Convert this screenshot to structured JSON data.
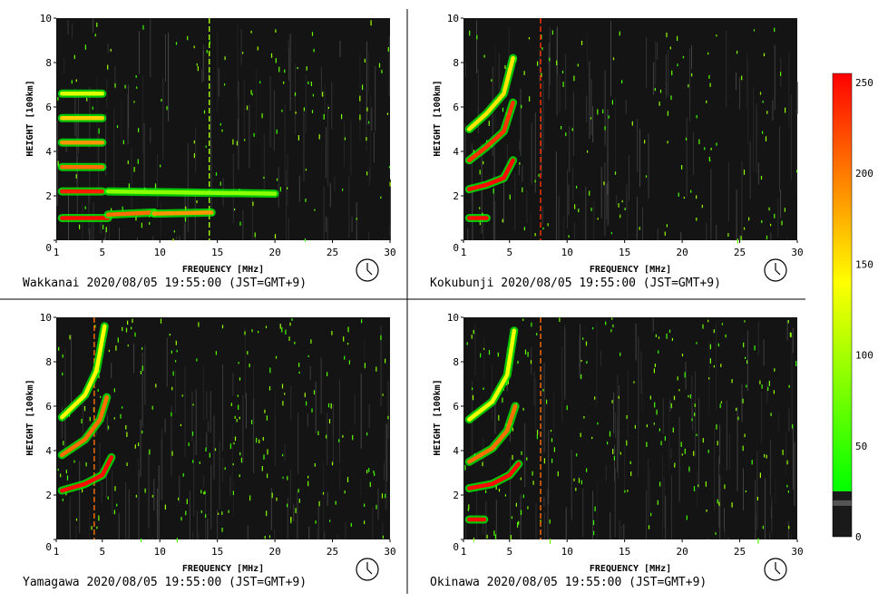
{
  "chart_data": [
    {
      "type": "heatmap",
      "station": "Wakkanai",
      "caption": "Wakkanai 2020/08/05 19:55:00 (JST=GMT+9)",
      "xlabel": "FREQUENCY [MHz]",
      "ylabel": "HEIGHT [100km]",
      "xlim": [
        1,
        30
      ],
      "ylim": [
        0,
        10
      ],
      "xticks": [
        1,
        5,
        10,
        15,
        20,
        25,
        30
      ],
      "yticks": [
        0,
        2,
        4,
        6,
        8,
        10
      ],
      "x_display_ticks": [
        5,
        10,
        15,
        20,
        25
      ],
      "traces": [
        {
          "x": [
            1.5,
            5.5
          ],
          "y": [
            1.0,
            1.0
          ],
          "intensity": 250
        },
        {
          "x": [
            5.5,
            9.5
          ],
          "y": [
            1.15,
            1.25
          ],
          "intensity": 200
        },
        {
          "x": [
            9.5,
            14.5
          ],
          "y": [
            1.2,
            1.25
          ],
          "intensity": 180
        },
        {
          "x": [
            1.5,
            5.0
          ],
          "y": [
            2.2,
            2.2
          ],
          "intensity": 240
        },
        {
          "x": [
            1.5,
            5.0
          ],
          "y": [
            3.3,
            3.3
          ],
          "intensity": 200
        },
        {
          "x": [
            1.5,
            5.0
          ],
          "y": [
            4.4,
            4.4
          ],
          "intensity": 180
        },
        {
          "x": [
            1.5,
            5.0
          ],
          "y": [
            5.5,
            5.5
          ],
          "intensity": 150
        },
        {
          "x": [
            1.5,
            5.0
          ],
          "y": [
            6.6,
            6.6
          ],
          "intensity": 110
        },
        {
          "x": [
            5.5,
            20
          ],
          "y": [
            2.2,
            2.1
          ],
          "intensity": 70
        }
      ],
      "vlines": [
        {
          "x": 14.3,
          "intensity": 80
        }
      ]
    },
    {
      "type": "heatmap",
      "station": "Kokubunji",
      "caption": "Kokubunji 2020/08/05 19:55:00 (JST=GMT+9)",
      "xlabel": "FREQUENCY [MHz]",
      "ylabel": "HEIGHT [100km]",
      "xlim": [
        1,
        30
      ],
      "ylim": [
        0,
        10
      ],
      "xticks": [
        1,
        5,
        10,
        15,
        20,
        25,
        30
      ],
      "yticks": [
        0,
        2,
        4,
        6,
        8,
        10
      ],
      "x_display_ticks": [
        5,
        10,
        15,
        20,
        25
      ],
      "traces": [
        {
          "x": [
            1.5,
            3.0
          ],
          "y": [
            1.0,
            1.0
          ],
          "intensity": 250
        },
        {
          "x": [
            1.5,
            3.0,
            4.5,
            5.3
          ],
          "y": [
            2.3,
            2.5,
            2.8,
            3.6
          ],
          "intensity": 250
        },
        {
          "x": [
            1.5,
            3.0,
            4.5,
            5.3
          ],
          "y": [
            3.6,
            4.2,
            4.9,
            6.2
          ],
          "intensity": 230
        },
        {
          "x": [
            1.5,
            3.0,
            4.5,
            5.3
          ],
          "y": [
            5.0,
            5.7,
            6.6,
            8.2
          ],
          "intensity": 140
        }
      ],
      "vlines": [
        {
          "x": 7.7,
          "intensity": 230
        }
      ]
    },
    {
      "type": "heatmap",
      "station": "Yamagawa",
      "caption": "Yamagawa 2020/08/05 19:55:00 (JST=GMT+9)",
      "xlabel": "FREQUENCY [MHz]",
      "ylabel": "HEIGHT [100km]",
      "xlim": [
        1,
        30
      ],
      "ylim": [
        0,
        10
      ],
      "xticks": [
        1,
        5,
        10,
        15,
        20,
        25,
        30
      ],
      "yticks": [
        0,
        2,
        4,
        6,
        8,
        10
      ],
      "x_display_ticks": [
        5,
        10,
        15,
        20,
        25
      ],
      "traces": [
        {
          "x": [
            1.5,
            3.5,
            5.0,
            5.8
          ],
          "y": [
            2.2,
            2.5,
            2.9,
            3.7
          ],
          "intensity": 250
        },
        {
          "x": [
            1.5,
            3.5,
            4.8,
            5.4
          ],
          "y": [
            3.8,
            4.5,
            5.4,
            6.4
          ],
          "intensity": 200
        },
        {
          "x": [
            1.5,
            3.5,
            4.5,
            5.2
          ],
          "y": [
            5.5,
            6.5,
            7.6,
            9.6
          ],
          "intensity": 130
        }
      ],
      "vlines": [
        {
          "x": 4.3,
          "intensity": 200
        }
      ]
    },
    {
      "type": "heatmap",
      "station": "Okinawa",
      "caption": "Okinawa 2020/08/05 19:55:00 (JST=GMT+9)",
      "xlabel": "FREQUENCY [MHz]",
      "ylabel": "HEIGHT [100km]",
      "xlim": [
        1,
        30
      ],
      "ylim": [
        0,
        10
      ],
      "xticks": [
        1,
        5,
        10,
        15,
        20,
        25,
        30
      ],
      "yticks": [
        0,
        2,
        4,
        6,
        8,
        10
      ],
      "x_display_ticks": [
        5,
        10,
        15,
        20,
        25
      ],
      "traces": [
        {
          "x": [
            1.5,
            2.8
          ],
          "y": [
            0.9,
            0.9
          ],
          "intensity": 250
        },
        {
          "x": [
            1.5,
            3.5,
            5.0,
            5.8
          ],
          "y": [
            2.3,
            2.5,
            2.9,
            3.4
          ],
          "intensity": 250
        },
        {
          "x": [
            1.5,
            3.5,
            4.8,
            5.5
          ],
          "y": [
            3.5,
            4.1,
            4.9,
            6.0
          ],
          "intensity": 200
        },
        {
          "x": [
            1.5,
            3.5,
            4.8,
            5.4
          ],
          "y": [
            5.4,
            6.2,
            7.4,
            9.4
          ],
          "intensity": 120
        }
      ],
      "vlines": [
        {
          "x": 7.7,
          "intensity": 200
        }
      ]
    }
  ],
  "colorbar": {
    "min": 0,
    "max": 255,
    "ticks": [
      {
        "value": 0,
        "label": "0"
      },
      {
        "value": 50,
        "label": "50"
      },
      {
        "value": 100,
        "label": "100"
      },
      {
        "value": 150,
        "label": "150"
      },
      {
        "value": 200,
        "label": "200"
      },
      {
        "value": 250,
        "label": "250"
      }
    ],
    "colors": {
      "low": "#00ff00",
      "mid": "#ffff00",
      "high": "#ff0000",
      "bg": "#1a1a1a"
    }
  }
}
